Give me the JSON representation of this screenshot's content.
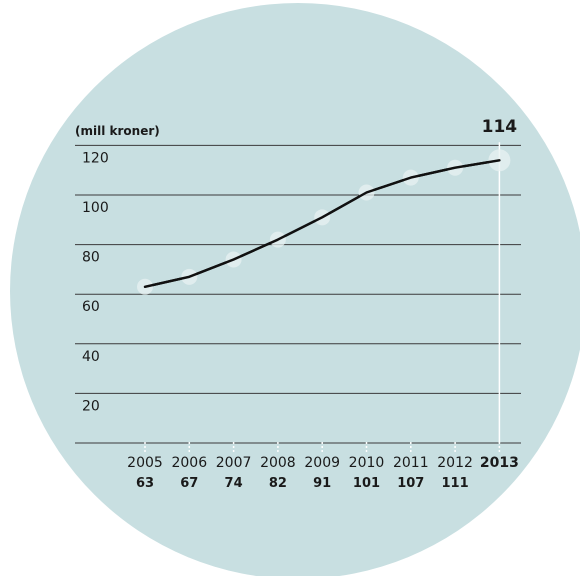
{
  "chart_data": {
    "type": "line",
    "unit_label": "(mill kroner)",
    "categories": [
      "2005",
      "2006",
      "2007",
      "2008",
      "2009",
      "2010",
      "2011",
      "2012",
      "2013"
    ],
    "values": [
      63,
      67,
      74,
      82,
      91,
      101,
      107,
      111,
      114
    ],
    "value_labels": [
      "63",
      "67",
      "74",
      "82",
      "91",
      "101",
      "107",
      "111",
      ""
    ],
    "highlight": {
      "category": "2013",
      "label": "114"
    },
    "yticks": [
      "20",
      "40",
      "60",
      "80",
      "100",
      "120"
    ],
    "ylim": [
      0,
      120
    ],
    "grid": true
  },
  "colors": {
    "circle": "#c8dfe1",
    "line": "#111111",
    "grid": "#3a3a3a",
    "marker": "#e8f1f2",
    "highlight_line": "#ffffff"
  }
}
